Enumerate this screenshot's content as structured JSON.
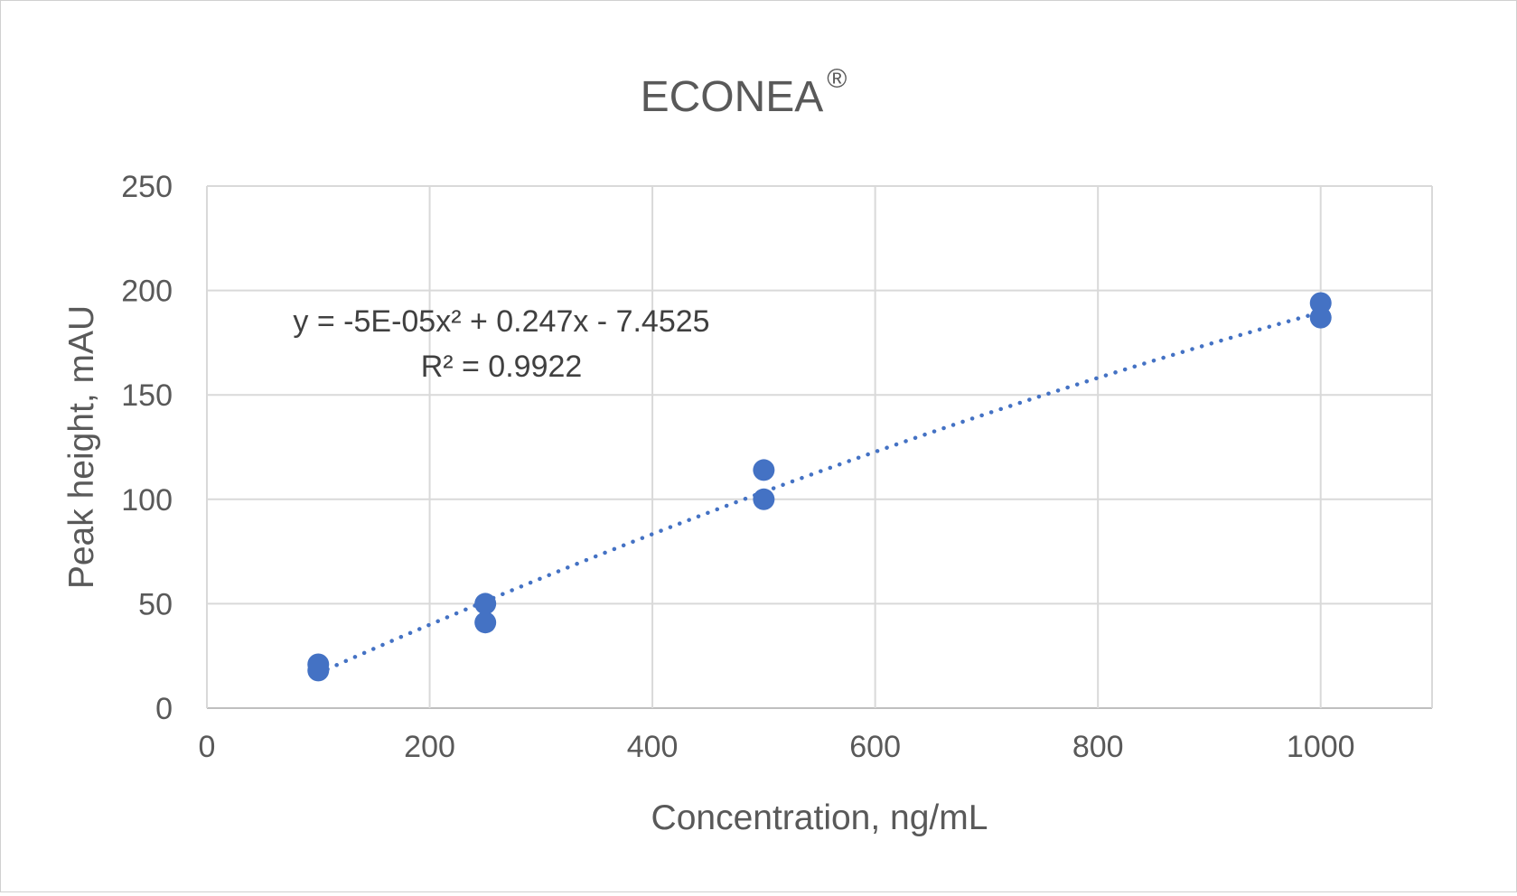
{
  "chart_data": {
    "type": "scatter",
    "title": "ECONEA",
    "title_mark": "®",
    "xlabel": "Concentration, ng/mL",
    "ylabel": "Peak height, mAU",
    "xlim": [
      0,
      1100
    ],
    "ylim": [
      0,
      250
    ],
    "x_ticks": [
      0,
      200,
      400,
      600,
      800,
      1000
    ],
    "y_ticks": [
      0,
      50,
      100,
      150,
      200,
      250
    ],
    "grid": true,
    "legend": "none",
    "series": [
      {
        "points": [
          {
            "x": 100,
            "y": 21
          },
          {
            "x": 100,
            "y": 18
          },
          {
            "x": 250,
            "y": 50
          },
          {
            "x": 250,
            "y": 41
          },
          {
            "x": 500,
            "y": 114
          },
          {
            "x": 500,
            "y": 100
          },
          {
            "x": 1000,
            "y": 194
          },
          {
            "x": 1000,
            "y": 187
          }
        ]
      }
    ],
    "trendline": {
      "type": "polynomial",
      "order": 2,
      "coefficients": {
        "a": -5e-05,
        "b": 0.247,
        "c": -7.4525
      },
      "x_range": [
        100,
        1000
      ],
      "equation_label": "y = -5E-05x² + 0.247x - 7.4525",
      "r2_label": "R² = 0.9922"
    },
    "colors": {
      "points": "#4472c4",
      "trendline": "#4472c4",
      "grid": "#d9d9d9",
      "text": "#595959"
    }
  }
}
